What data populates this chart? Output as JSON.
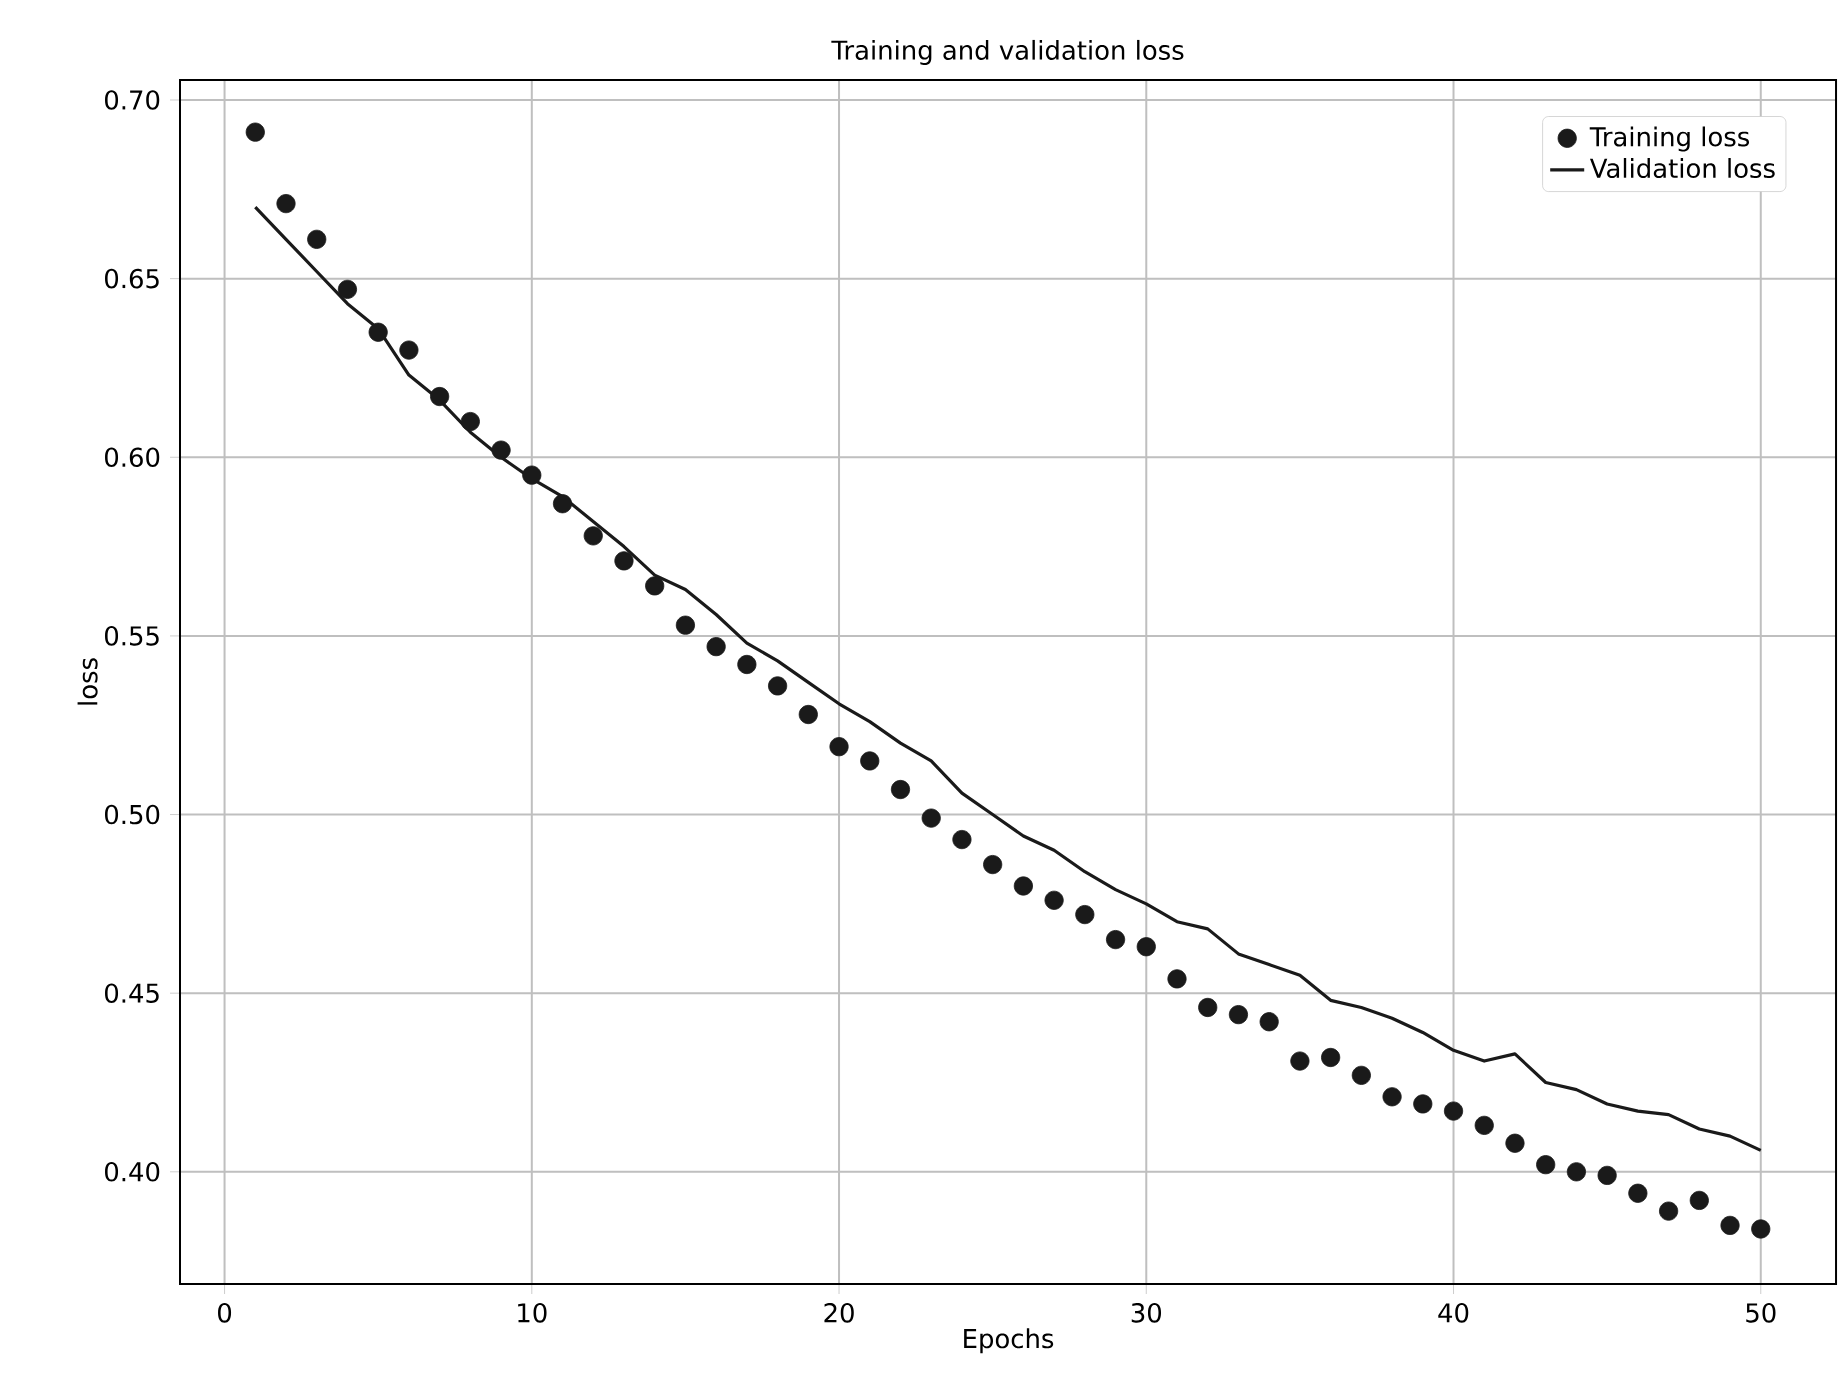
{
  "chart_data": {
    "type": "line",
    "title": "Training and validation loss",
    "xlabel": "Epochs",
    "ylabel": "loss",
    "xlim": [
      -1.45,
      52.45
    ],
    "ylim": [
      0.3686,
      0.7056
    ],
    "xticks": [
      0,
      10,
      20,
      30,
      40,
      50
    ],
    "yticks": [
      {
        "value": 0.4,
        "label": "0.40"
      },
      {
        "value": 0.45,
        "label": "0.45"
      },
      {
        "value": 0.5,
        "label": "0.50"
      },
      {
        "value": 0.55,
        "label": "0.55"
      },
      {
        "value": 0.6,
        "label": "0.60"
      },
      {
        "value": 0.65,
        "label": "0.65"
      },
      {
        "value": 0.7,
        "label": "0.70"
      }
    ],
    "grid": true,
    "legend": "top right",
    "x": [
      1,
      2,
      3,
      4,
      5,
      6,
      7,
      8,
      9,
      10,
      11,
      12,
      13,
      14,
      15,
      16,
      17,
      18,
      19,
      20,
      21,
      22,
      23,
      24,
      25,
      26,
      27,
      28,
      29,
      30,
      31,
      32,
      33,
      34,
      35,
      36,
      37,
      38,
      39,
      40,
      41,
      42,
      43,
      44,
      45,
      46,
      47,
      48,
      49,
      50
    ],
    "series": [
      {
        "name": "Training loss",
        "type": "scatter",
        "marker": "circle",
        "color": "#1a1a1a",
        "values": [
          0.691,
          0.671,
          0.661,
          0.647,
          0.635,
          0.63,
          0.617,
          0.61,
          0.602,
          0.595,
          0.587,
          0.578,
          0.571,
          0.564,
          0.553,
          0.547,
          0.542,
          0.536,
          0.528,
          0.519,
          0.515,
          0.507,
          0.499,
          0.493,
          0.486,
          0.48,
          0.476,
          0.472,
          0.465,
          0.463,
          0.454,
          0.446,
          0.444,
          0.442,
          0.431,
          0.432,
          0.427,
          0.421,
          0.419,
          0.417,
          0.413,
          0.408,
          0.402,
          0.4,
          0.399,
          0.394,
          0.389,
          0.392,
          0.385,
          0.384
        ]
      },
      {
        "name": "Validation loss",
        "line_style": "solid",
        "color": "#1a1a1a",
        "values": [
          0.67,
          0.661,
          0.652,
          0.643,
          0.636,
          0.623,
          0.616,
          0.607,
          0.6,
          0.594,
          0.589,
          0.582,
          0.575,
          0.567,
          0.563,
          0.556,
          0.548,
          0.543,
          0.537,
          0.531,
          0.526,
          0.52,
          0.515,
          0.506,
          0.5,
          0.494,
          0.49,
          0.484,
          0.479,
          0.475,
          0.47,
          0.468,
          0.461,
          0.458,
          0.455,
          0.448,
          0.446,
          0.443,
          0.439,
          0.434,
          0.431,
          0.433,
          0.425,
          0.423,
          0.419,
          0.417,
          0.416,
          0.412,
          0.41,
          0.406
        ]
      }
    ]
  }
}
